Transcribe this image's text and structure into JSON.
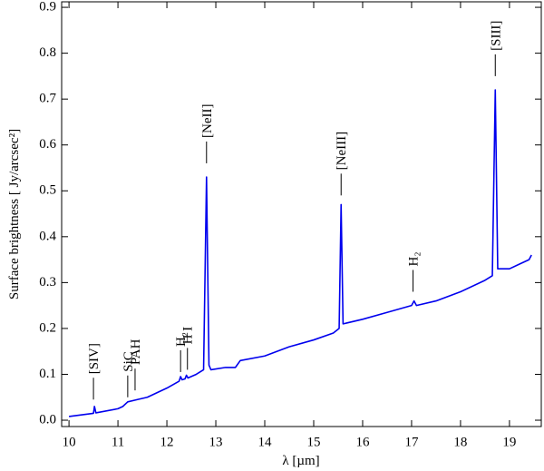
{
  "chart_data": {
    "type": "line",
    "x_label": "λ [µm]",
    "y_label": "Surface brightness [ Jy/arcsec²]",
    "xlim": [
      9.85,
      19.65
    ],
    "ylim": [
      -0.0138,
      0.912
    ],
    "xticks": [
      10,
      11,
      12,
      13,
      14,
      15,
      16,
      17,
      18,
      19
    ],
    "yticks": [
      {
        "value": 0,
        "label": "0.0"
      },
      0.1,
      0.2,
      0.3,
      0.4,
      0.5,
      0.6,
      0.7,
      0.8,
      0.9
    ],
    "series": [
      {
        "color": "#0000ee",
        "x": [
          10.0,
          10.5,
          10.52,
          10.55,
          11.0,
          11.1,
          11.2,
          11.4,
          11.6,
          12.0,
          12.25,
          12.28,
          12.31,
          12.37,
          12.4,
          12.43,
          12.6,
          12.75,
          12.81,
          12.86,
          12.9,
          13.2,
          13.4,
          13.5,
          14.0,
          14.5,
          15.0,
          15.4,
          15.52,
          15.56,
          15.6,
          16.0,
          16.5,
          17.0,
          17.05,
          17.1,
          17.5,
          18.0,
          18.5,
          18.65,
          18.71,
          18.76,
          19.0,
          19.2,
          19.4,
          19.45
        ],
        "values": [
          0.008,
          0.015,
          0.03,
          0.016,
          0.025,
          0.03,
          0.04,
          0.045,
          0.05,
          0.07,
          0.085,
          0.095,
          0.088,
          0.09,
          0.098,
          0.092,
          0.1,
          0.11,
          0.53,
          0.12,
          0.11,
          0.115,
          0.115,
          0.13,
          0.14,
          0.16,
          0.175,
          0.19,
          0.2,
          0.47,
          0.21,
          0.22,
          0.235,
          0.25,
          0.26,
          0.25,
          0.26,
          0.28,
          0.305,
          0.315,
          0.72,
          0.33,
          0.33,
          0.34,
          0.35,
          0.36
        ]
      }
    ],
    "annotations": [
      {
        "text": "[SIV]",
        "x": 10.5,
        "y": 0.045
      },
      {
        "text": "SiC",
        "x": 11.2,
        "y": 0.05
      },
      {
        "text": "PAH",
        "x": 11.35,
        "y": 0.065
      },
      {
        "text": "H₂",
        "x": 12.28,
        "y": 0.105
      },
      {
        "text": "H I",
        "x": 12.42,
        "y": 0.11
      },
      {
        "text": "[NeII]",
        "x": 12.81,
        "y": 0.56
      },
      {
        "text": "[NeIII]",
        "x": 15.56,
        "y": 0.49
      },
      {
        "text": "H₂",
        "x": 17.03,
        "y": 0.28
      },
      {
        "text": "[SIII]",
        "x": 18.71,
        "y": 0.75
      }
    ]
  }
}
